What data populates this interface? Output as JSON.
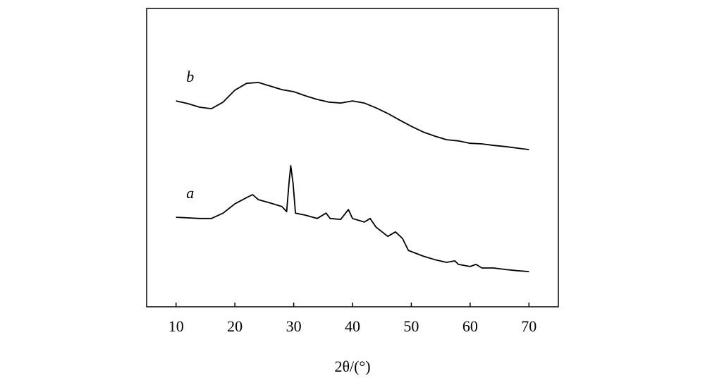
{
  "chart_data": {
    "type": "line",
    "x_label": "2θ/(°)",
    "xlim": [
      5,
      75
    ],
    "xticks": [
      10,
      20,
      30,
      40,
      50,
      60,
      70
    ],
    "ylim": [
      0,
      100
    ],
    "series": [
      {
        "name": "a",
        "color": "#000000",
        "x": [
          10,
          12,
          14,
          16,
          18,
          20,
          22,
          23,
          24,
          26,
          28,
          28.8,
          29.2,
          29.5,
          29.9,
          30.3,
          32,
          34,
          35.5,
          36.2,
          38,
          39.3,
          40,
          42,
          43,
          44,
          46,
          47.3,
          48.5,
          49.5,
          52,
          54,
          56,
          57.4,
          58,
          60,
          61,
          62,
          64,
          66,
          68,
          70
        ],
        "values": [
          30.0,
          29.8,
          29.6,
          29.6,
          31.4,
          34.5,
          36.6,
          37.6,
          35.9,
          34.8,
          33.6,
          31.9,
          41.4,
          47.3,
          41.4,
          31.4,
          30.7,
          29.6,
          31.4,
          29.6,
          29.3,
          32.6,
          29.6,
          28.4,
          29.6,
          26.7,
          23.6,
          25.1,
          22.9,
          18.9,
          17.0,
          15.8,
          14.9,
          15.4,
          14.2,
          13.5,
          14.2,
          13.0,
          13.0,
          12.5,
          12.1,
          11.8
        ]
      },
      {
        "name": "b",
        "color": "#000000",
        "x": [
          10,
          12,
          14,
          16,
          18,
          20,
          22,
          24,
          26,
          28,
          30,
          32,
          34,
          36,
          38,
          40,
          42,
          44,
          46,
          48,
          50,
          52,
          54,
          56,
          58,
          60,
          62,
          64,
          66,
          68,
          70
        ],
        "values": [
          69.0,
          68.1,
          66.9,
          66.4,
          68.6,
          72.6,
          74.9,
          75.2,
          74.0,
          72.8,
          72.1,
          70.7,
          69.5,
          68.6,
          68.3,
          69.0,
          68.3,
          66.7,
          64.8,
          62.6,
          60.5,
          58.6,
          57.2,
          56.0,
          55.6,
          54.8,
          54.6,
          54.1,
          53.7,
          53.2,
          52.7
        ]
      }
    ]
  }
}
